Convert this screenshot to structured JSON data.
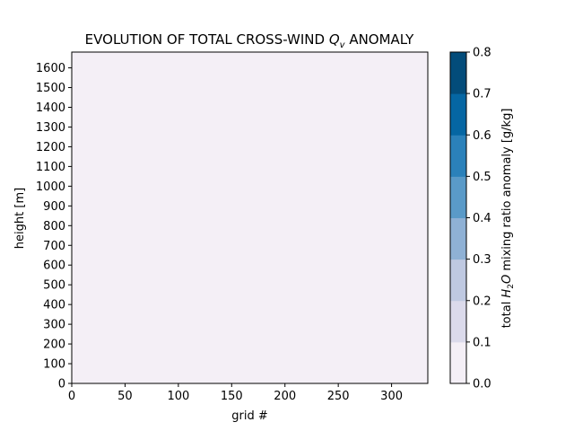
{
  "chart_data": {
    "type": "heatmap",
    "title_pre": "EVOLUTION OF TOTAL CROSS-WIND ",
    "title_var": "Q",
    "title_sub": "v",
    "title_post": " ANOMALY",
    "xlabel": "grid #",
    "ylabel": "height [m]",
    "xlim": [
      0,
      334
    ],
    "ylim": [
      0,
      1680
    ],
    "xticks": [
      0,
      50,
      100,
      150,
      200,
      250,
      300
    ],
    "yticks": [
      0,
      100,
      200,
      300,
      400,
      500,
      600,
      700,
      800,
      900,
      1000,
      1100,
      1200,
      1300,
      1400,
      1500,
      1600
    ],
    "field_value": 0.0,
    "colorbar": {
      "label_pre": "total ",
      "label_var": "H",
      "label_sub": "2",
      "label_var2": "O",
      "label_post": " mixing ratio anomaly [g/kg]",
      "levels": [
        0.0,
        0.1,
        0.2,
        0.3,
        0.4,
        0.5,
        0.6,
        0.7,
        0.8
      ],
      "tick_labels": [
        "0.0",
        "0.1",
        "0.2",
        "0.3",
        "0.4",
        "0.5",
        "0.6",
        "0.7",
        "0.8"
      ],
      "colors": [
        "#f4eff6",
        "#dbdaeb",
        "#bfc9e1",
        "#8fb1d5",
        "#5a9ac8",
        "#2b81ba",
        "#0566a3",
        "#034c7a"
      ]
    }
  }
}
